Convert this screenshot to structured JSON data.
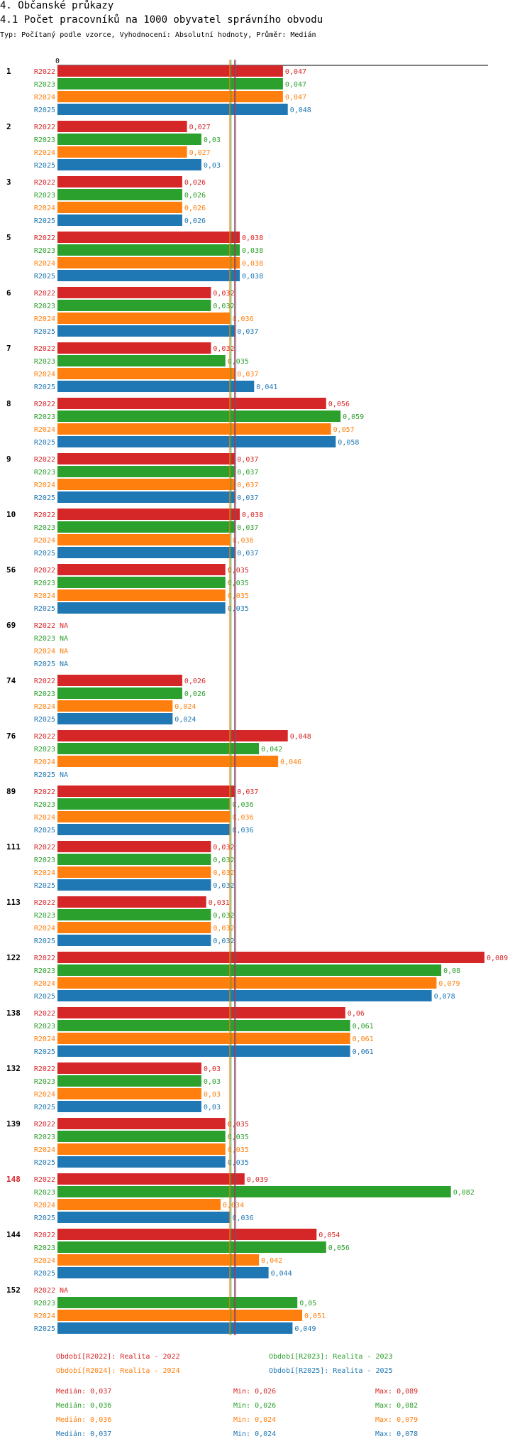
{
  "header": {
    "section": "4. Občanské průkazy",
    "title": "4.1 Počet pracovníků na 1000 obyvatel správního obvodu",
    "subtitle": "Typ: Počítaný podle vzorce, Vyhodnocení: Absolutní hodnoty, Průměr: Medián"
  },
  "colors": {
    "R2022": "#d62728",
    "R2023": "#2ca02c",
    "R2024": "#ff7f0e",
    "R2025": "#1f77b4",
    "highlight": "#d62728",
    "axis": "#000000"
  },
  "chart_data": {
    "type": "bar",
    "orientation": "horizontal",
    "axis_zero_label": "0",
    "xlim": [
      0,
      0.089
    ],
    "series_names": [
      "R2022",
      "R2023",
      "R2024",
      "R2025"
    ],
    "na_label": "NA",
    "highlighted_category": "148",
    "categories": [
      "1",
      "2",
      "3",
      "5",
      "6",
      "7",
      "8",
      "9",
      "10",
      "56",
      "69",
      "74",
      "76",
      "89",
      "111",
      "113",
      "122",
      "138",
      "132",
      "139",
      "148",
      "144",
      "152"
    ],
    "values": {
      "R2022": [
        0.047,
        0.027,
        0.026,
        0.038,
        0.032,
        0.032,
        0.056,
        0.037,
        0.038,
        0.035,
        null,
        0.026,
        0.048,
        0.037,
        0.032,
        0.031,
        0.089,
        0.06,
        0.03,
        0.035,
        0.039,
        0.054,
        null
      ],
      "R2023": [
        0.047,
        0.03,
        0.026,
        0.038,
        0.032,
        0.035,
        0.059,
        0.037,
        0.037,
        0.035,
        null,
        0.026,
        0.042,
        0.036,
        0.032,
        0.032,
        0.08,
        0.061,
        0.03,
        0.035,
        0.082,
        0.056,
        0.05
      ],
      "R2024": [
        0.047,
        0.027,
        0.026,
        0.038,
        0.036,
        0.037,
        0.057,
        0.037,
        0.036,
        0.035,
        null,
        0.024,
        0.046,
        0.036,
        0.032,
        0.032,
        0.079,
        0.061,
        0.03,
        0.035,
        0.034,
        0.042,
        0.051
      ],
      "R2025": [
        0.048,
        0.03,
        0.026,
        0.038,
        0.037,
        0.041,
        0.058,
        0.037,
        0.037,
        0.035,
        null,
        0.024,
        null,
        0.036,
        0.032,
        0.032,
        0.078,
        0.061,
        0.03,
        0.035,
        0.036,
        0.044,
        0.049
      ]
    },
    "median_lines": [
      {
        "series": "R2022",
        "value": 0.037
      },
      {
        "series": "R2023",
        "value": 0.036
      },
      {
        "series": "R2024",
        "value": 0.036
      },
      {
        "series": "R2025",
        "value": 0.037
      }
    ]
  },
  "legend": [
    {
      "series": "R2022",
      "label": "Období[R2022]: Realita - 2022"
    },
    {
      "series": "R2023",
      "label": "Období[R2023]: Realita - 2023"
    },
    {
      "series": "R2024",
      "label": "Období[R2024]: Realita - 2024"
    },
    {
      "series": "R2025",
      "label": "Období[R2025]: Realita - 2025"
    }
  ],
  "stats": [
    {
      "series": "R2022",
      "median": "Medián: 0,037",
      "min": "Min: 0,026",
      "max": "Max: 0,089"
    },
    {
      "series": "R2023",
      "median": "Medián: 0,036",
      "min": "Min: 0,026",
      "max": "Max: 0,082"
    },
    {
      "series": "R2024",
      "median": "Medián: 0,036",
      "min": "Min: 0,024",
      "max": "Max: 0,079"
    },
    {
      "series": "R2025",
      "median": "Medián: 0,037",
      "min": "Min: 0,024",
      "max": "Max: 0,078"
    }
  ]
}
